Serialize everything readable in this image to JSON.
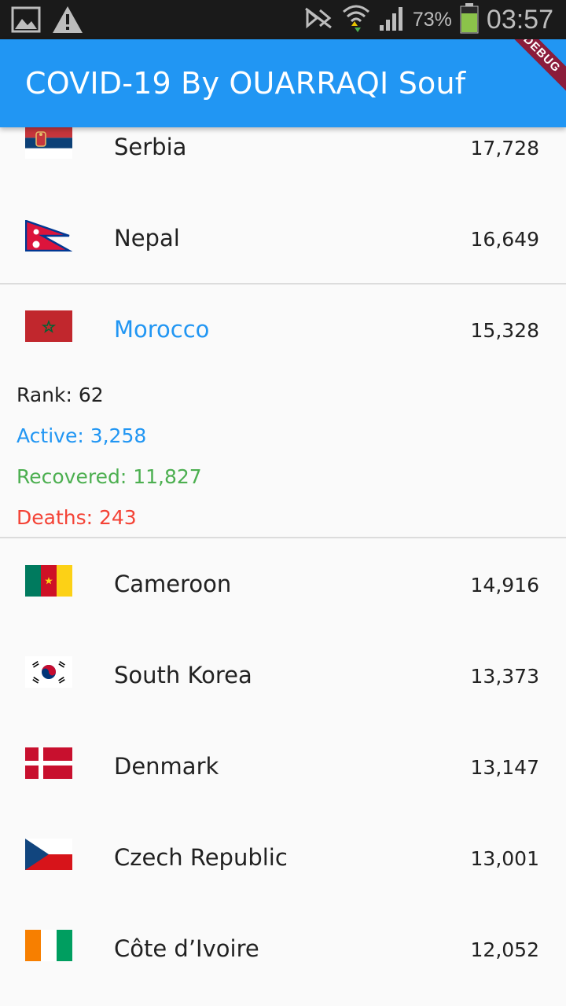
{
  "status_bar": {
    "battery_percent": "73%",
    "time": "03:57",
    "icons": [
      "image-icon",
      "warning-icon",
      "nfc-icon",
      "wifi-icon",
      "signal-icon",
      "battery-icon"
    ]
  },
  "app_bar": {
    "title": "COVID-19 By OUARRAQI Souf",
    "debug_label": "DEBUG",
    "color": "#2196f3"
  },
  "countries": [
    {
      "name": "Serbia",
      "cases": "17,728",
      "flag": "serbia-flag"
    },
    {
      "name": "Nepal",
      "cases": "16,649",
      "flag": "nepal-flag"
    },
    {
      "name": "Morocco",
      "cases": "15,328",
      "flag": "morocco-flag",
      "expanded": true,
      "details": {
        "rank": "Rank: 62",
        "active": "Active: 3,258",
        "recovered": "Recovered: 11,827",
        "deaths": "Deaths: 243"
      }
    },
    {
      "name": "Cameroon",
      "cases": "14,916",
      "flag": "cameroon-flag"
    },
    {
      "name": "South Korea",
      "cases": "13,373",
      "flag": "south-korea-flag"
    },
    {
      "name": "Denmark",
      "cases": "13,147",
      "flag": "denmark-flag"
    },
    {
      "name": "Czech Republic",
      "cases": "13,001",
      "flag": "czech-republic-flag"
    },
    {
      "name": "Côte d’Ivoire",
      "cases": "12,052",
      "flag": "cote-divoire-flag"
    }
  ],
  "colors": {
    "active": "#2196f3",
    "recovered": "#4caf50",
    "deaths": "#f44336"
  }
}
